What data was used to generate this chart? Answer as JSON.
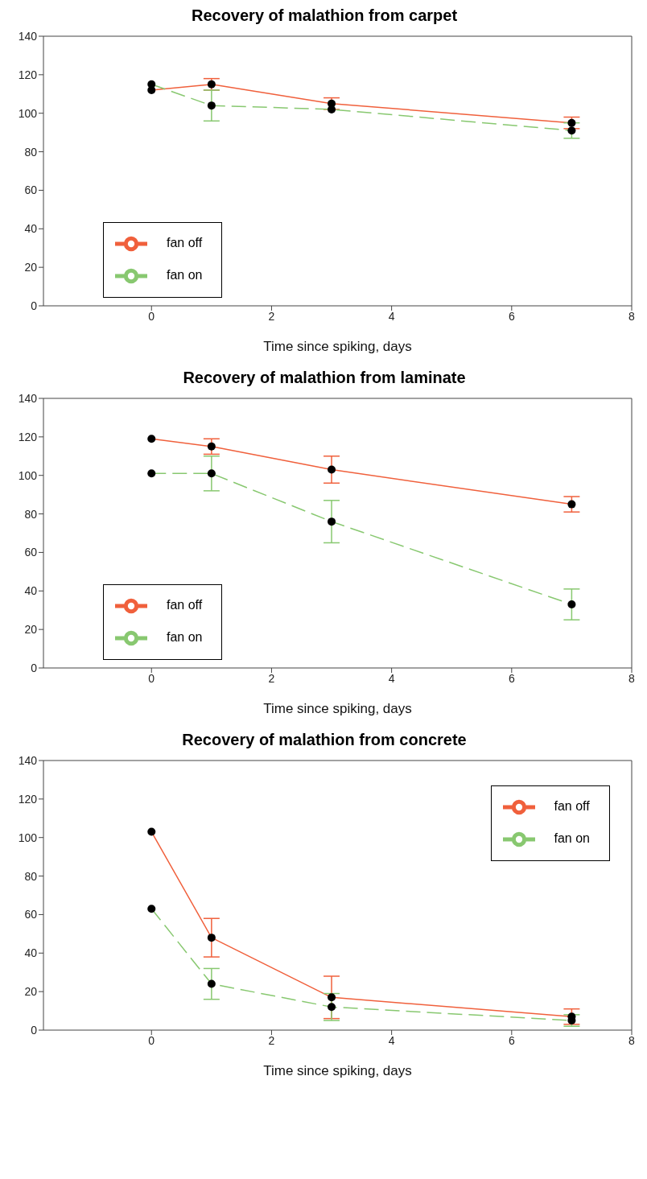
{
  "chart_data": [
    {
      "type": "line",
      "title": "Recovery of malathion from carpet",
      "xlabel": "Time since spiking, days",
      "x": [
        0,
        1,
        3,
        7
      ],
      "xlim": [
        -1.8,
        8
      ],
      "xticks": [
        0,
        2,
        4,
        6,
        8
      ],
      "ylim": [
        0,
        140
      ],
      "yticks": [
        0,
        20,
        40,
        60,
        80,
        100,
        120,
        140
      ],
      "grid": false,
      "legend": "bottom left",
      "marker": "circle",
      "series": [
        {
          "name": "fan off",
          "color": "#f0603c",
          "line_style": "solid",
          "values": [
            112,
            115,
            105,
            95
          ],
          "errors": [
            null,
            3,
            3,
            3
          ]
        },
        {
          "name": "fan on",
          "color": "#88c870",
          "line_style": "dashed",
          "values": [
            115,
            104,
            102,
            91
          ],
          "errors": [
            null,
            8,
            null,
            4
          ]
        }
      ]
    },
    {
      "type": "line",
      "title": "Recovery of malathion from laminate",
      "xlabel": "Time since spiking, days",
      "x": [
        0,
        1,
        3,
        7
      ],
      "xlim": [
        -1.8,
        8
      ],
      "xticks": [
        0,
        2,
        4,
        6,
        8
      ],
      "ylim": [
        0,
        140
      ],
      "yticks": [
        0,
        20,
        40,
        60,
        80,
        100,
        120,
        140
      ],
      "grid": false,
      "legend": "bottom left",
      "marker": "circle",
      "series": [
        {
          "name": "fan off",
          "color": "#f0603c",
          "line_style": "solid",
          "values": [
            119,
            115,
            103,
            85
          ],
          "errors": [
            null,
            4,
            7,
            4
          ]
        },
        {
          "name": "fan on",
          "color": "#88c870",
          "line_style": "dashed",
          "values": [
            101,
            101,
            76,
            33
          ],
          "errors": [
            null,
            9,
            11,
            8
          ]
        }
      ]
    },
    {
      "type": "line",
      "title": "Recovery of malathion from concrete",
      "xlabel": "Time since spiking, days",
      "x": [
        0,
        1,
        3,
        7
      ],
      "xlim": [
        -1.8,
        8
      ],
      "xticks": [
        0,
        2,
        4,
        6,
        8
      ],
      "ylim": [
        0,
        140
      ],
      "yticks": [
        0,
        20,
        40,
        60,
        80,
        100,
        120,
        140
      ],
      "grid": false,
      "legend": "top right",
      "marker": "circle",
      "series": [
        {
          "name": "fan off",
          "color": "#f0603c",
          "line_style": "solid",
          "values": [
            103,
            48,
            17,
            7
          ],
          "errors": [
            null,
            10,
            11,
            4
          ]
        },
        {
          "name": "fan on",
          "color": "#88c870",
          "line_style": "dashed",
          "values": [
            63,
            24,
            12,
            5
          ],
          "errors": [
            null,
            8,
            7,
            3
          ]
        }
      ]
    }
  ]
}
